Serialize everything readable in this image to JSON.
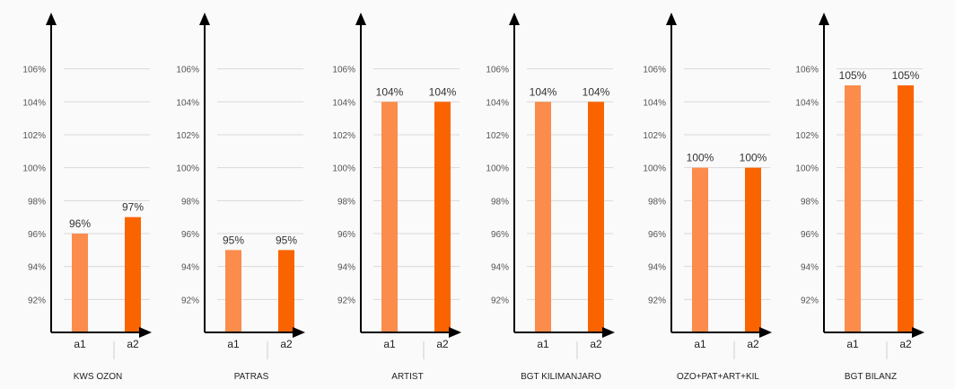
{
  "chart_data": [
    {
      "type": "bar",
      "title": "",
      "xlabel": "KWS OZON",
      "ylabel": "",
      "categories": [
        "a1",
        "a2"
      ],
      "values": [
        96,
        97
      ],
      "value_labels": [
        "96%",
        "97%"
      ],
      "ylim": [
        90,
        108
      ],
      "yticks": [
        "92%",
        "94%",
        "96%",
        "98%",
        "100%",
        "102%",
        "104%",
        "106%"
      ],
      "grid": true,
      "legend": "none"
    },
    {
      "type": "bar",
      "title": "",
      "xlabel": "PATRAS",
      "ylabel": "",
      "categories": [
        "a1",
        "a2"
      ],
      "values": [
        95,
        95
      ],
      "value_labels": [
        "95%",
        "95%"
      ],
      "ylim": [
        90,
        108
      ],
      "yticks": [
        "92%",
        "94%",
        "96%",
        "98%",
        "100%",
        "102%",
        "104%",
        "106%"
      ],
      "grid": true,
      "legend": "none"
    },
    {
      "type": "bar",
      "title": "",
      "xlabel": "ARTIST",
      "ylabel": "",
      "categories": [
        "a1",
        "a2"
      ],
      "values": [
        104,
        104
      ],
      "value_labels": [
        "104%",
        "104%"
      ],
      "ylim": [
        90,
        108
      ],
      "yticks": [
        "92%",
        "94%",
        "96%",
        "98%",
        "100%",
        "102%",
        "104%",
        "106%"
      ],
      "grid": true,
      "legend": "none"
    },
    {
      "type": "bar",
      "title": "",
      "xlabel": "BGT KILIMANJARO",
      "ylabel": "",
      "categories": [
        "a1",
        "a2"
      ],
      "values": [
        104,
        104
      ],
      "value_labels": [
        "104%",
        "104%"
      ],
      "ylim": [
        90,
        108
      ],
      "yticks": [
        "92%",
        "94%",
        "96%",
        "98%",
        "100%",
        "102%",
        "104%",
        "106%"
      ],
      "grid": true,
      "legend": "none"
    },
    {
      "type": "bar",
      "title": "",
      "xlabel": "OZO+PAT+ART+KIL",
      "ylabel": "",
      "categories": [
        "a1",
        "a2"
      ],
      "values": [
        100,
        100
      ],
      "value_labels": [
        "100%",
        "100%"
      ],
      "ylim": [
        90,
        108
      ],
      "yticks": [
        "92%",
        "94%",
        "96%",
        "98%",
        "100%",
        "102%",
        "104%",
        "106%"
      ],
      "grid": true,
      "legend": "none"
    },
    {
      "type": "bar",
      "title": "",
      "xlabel": "BGT BILANZ",
      "ylabel": "",
      "categories": [
        "a1",
        "a2"
      ],
      "values": [
        105,
        105
      ],
      "value_labels": [
        "105%",
        "105%"
      ],
      "ylim": [
        90,
        108
      ],
      "yticks": [
        "92%",
        "94%",
        "96%",
        "98%",
        "100%",
        "102%",
        "104%",
        "106%"
      ],
      "grid": true,
      "legend": "none"
    }
  ],
  "colors": {
    "a1": "#fb8c4c",
    "a2": "#fa6400",
    "axis": "#000000",
    "grid": "#d9d9d9",
    "tick_text": "#555555",
    "value_text": "#333333"
  }
}
